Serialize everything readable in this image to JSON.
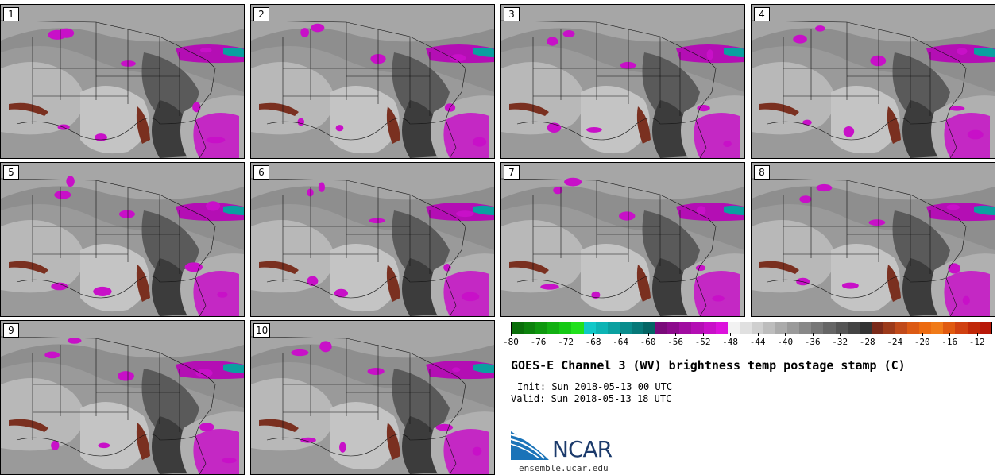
{
  "title": "GOES-E Channel 3 (WV) brightness temp postage stamp (C)",
  "init": "Init: Sun 2018-05-13 00 UTC",
  "valid": "Valid: Sun 2018-05-13 18 UTC",
  "logo": {
    "name": "NCAR",
    "url": "ensemble.ucar.edu"
  },
  "colorbar": {
    "ticks": [
      "-80",
      "-76",
      "-72",
      "-68",
      "-64",
      "-60",
      "-56",
      "-52",
      "-48",
      "-44",
      "-40",
      "-36",
      "-32",
      "-28",
      "-24",
      "-20",
      "-16",
      "-12"
    ],
    "colors": [
      "#0a6e0a",
      "#0c820c",
      "#0e980e",
      "#12b012",
      "#14c914",
      "#20e01c",
      "#10c8c8",
      "#0cb4b4",
      "#0aa0a0",
      "#088c8c",
      "#067878",
      "#046464",
      "#7a0a7a",
      "#8c0a8c",
      "#a00ca0",
      "#b40eb4",
      "#c810c8",
      "#dc12dc",
      "#f2f2f2",
      "#e0e0e0",
      "#cfcfcf",
      "#bdbdbd",
      "#ababab",
      "#9a9a9a",
      "#888888",
      "#777777",
      "#666666",
      "#555555",
      "#444444",
      "#333333",
      "#7a2a1a",
      "#9c3a1a",
      "#c04a1a",
      "#dc5a14",
      "#ec6a10",
      "#f07a18",
      "#e05a10",
      "#d04010",
      "#c02808",
      "#b81808"
    ]
  },
  "panels": [
    {
      "label": "1"
    },
    {
      "label": "2"
    },
    {
      "label": "3"
    },
    {
      "label": "4"
    },
    {
      "label": "5"
    },
    {
      "label": "6"
    },
    {
      "label": "7"
    },
    {
      "label": "8"
    },
    {
      "label": "9"
    },
    {
      "label": "10"
    }
  ]
}
